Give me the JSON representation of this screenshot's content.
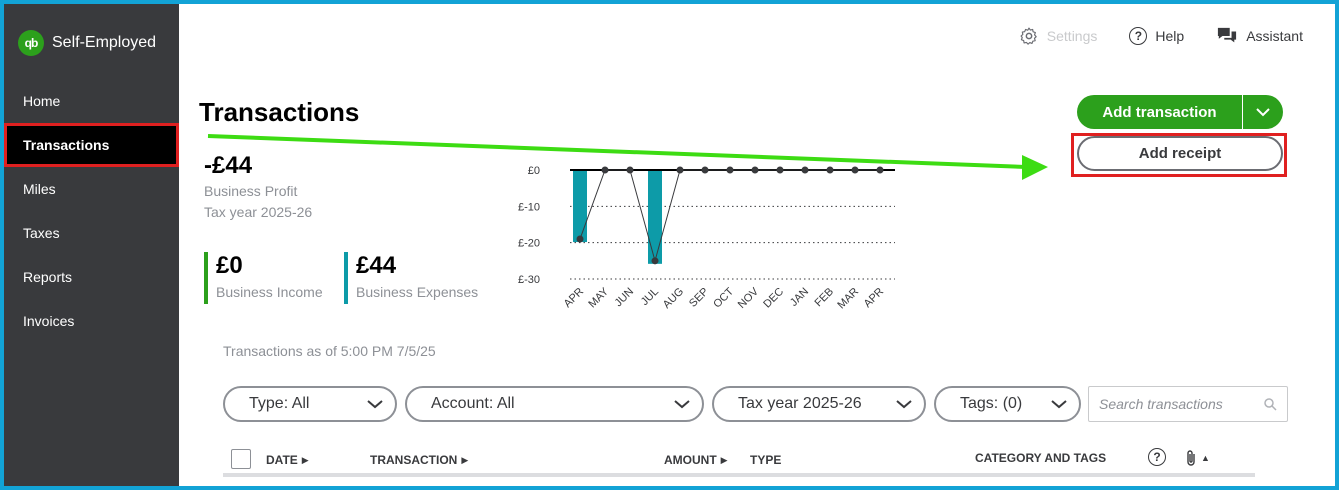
{
  "app": {
    "name": "Self-Employed"
  },
  "sidebar": {
    "items": [
      {
        "label": "Home"
      },
      {
        "label": "Transactions"
      },
      {
        "label": "Miles"
      },
      {
        "label": "Taxes"
      },
      {
        "label": "Reports"
      },
      {
        "label": "Invoices"
      }
    ],
    "active": "Transactions"
  },
  "topbar": {
    "settings_label": "Settings",
    "help_label": "Help",
    "assistant_label": "Assistant"
  },
  "page": {
    "title": "Transactions"
  },
  "actions": {
    "add_transaction_label": "Add transaction",
    "add_receipt_label": "Add receipt"
  },
  "summary": {
    "profit_value": "-£44",
    "profit_label": "Business Profit",
    "tax_year": "Tax year 2025-26",
    "income_value": "£0",
    "income_label": "Business Income",
    "expenses_value": "£44",
    "expenses_label": "Business Expenses"
  },
  "chart_data": {
    "type": "bar",
    "categories": [
      "APR",
      "MAY",
      "JUN",
      "JUL",
      "AUG",
      "SEP",
      "OCT",
      "NOV",
      "DEC",
      "JAN",
      "FEB",
      "MAR",
      "APR"
    ],
    "series": [
      {
        "values": [
          -19,
          0,
          0,
          -25,
          0,
          0,
          0,
          0,
          0,
          0,
          0,
          0,
          0
        ]
      }
    ],
    "line_values": [
      -19,
      0,
      0,
      -25,
      0,
      0,
      0,
      0,
      0,
      0,
      0,
      0,
      0
    ],
    "yticks": [
      "£0",
      "£-10",
      "£-20",
      "£-30"
    ],
    "ylim": [
      -30,
      0
    ],
    "bar_color": "#0d9ba8",
    "grid": "dotted"
  },
  "asof": "Transactions as of 5:00 PM 7/5/25",
  "filters": {
    "type": "Type: All",
    "account": "Account: All",
    "tax_year": "Tax year 2025-26",
    "tags": "Tags: (0)",
    "search_placeholder": "Search transactions"
  },
  "table": {
    "headers": {
      "date": "DATE",
      "transaction": "TRANSACTION",
      "amount": "AMOUNT",
      "type": "TYPE",
      "category": "CATEGORY AND TAGS"
    }
  },
  "colors": {
    "brand_green": "#2ca01c",
    "sidebar_bg": "#393a3d",
    "highlight_red": "#e02020",
    "arrow_green": "#3ddc13",
    "frame_blue": "#12a3d6"
  },
  "icons": {
    "settings": "gear-icon",
    "help": "question-circle-icon",
    "assistant": "chat-bubbles-icon",
    "search": "search-icon",
    "attachment": "paperclip-icon"
  }
}
